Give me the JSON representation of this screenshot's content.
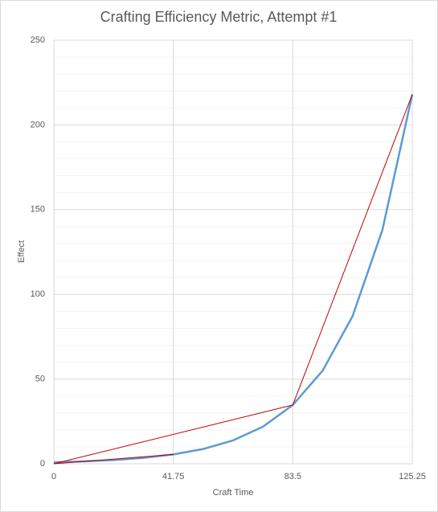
{
  "chart_data": {
    "type": "line",
    "title": "Crafting Efficiency Metric, Attempt #1",
    "x_label": "Craft Time",
    "y_label": "Effect",
    "xlim": [
      0,
      125.25
    ],
    "xticks": [
      0,
      41.75,
      83.5,
      125.25
    ],
    "ylim": [
      0,
      250
    ],
    "yticks": [
      0,
      50,
      100,
      150,
      200,
      250
    ],
    "yminorticks": [
      10,
      20,
      30,
      40,
      60,
      70,
      80,
      90,
      110,
      120,
      130,
      140,
      160,
      170,
      180,
      190,
      210,
      220,
      230,
      240
    ],
    "grid": true,
    "series": [
      {
        "color": "#5b9bd5",
        "x": [
          0,
          10.44,
          20.88,
          31.31,
          41.75,
          52.19,
          62.63,
          73.06,
          83.5,
          93.94,
          104.38,
          114.81,
          125.25
        ],
        "values": [
          0.9,
          1.4,
          2.2,
          3.5,
          5.5,
          8.7,
          13.8,
          21.9,
          34.7,
          55,
          87.1,
          138,
          218
        ]
      },
      {
        "color": "#c00000",
        "x": [
          0,
          83.5,
          125.25
        ],
        "values": [
          0,
          34.7,
          218
        ]
      },
      {
        "color": "#c00000",
        "x": [
          0,
          41.75
        ],
        "values": [
          0,
          5.5
        ]
      }
    ]
  }
}
